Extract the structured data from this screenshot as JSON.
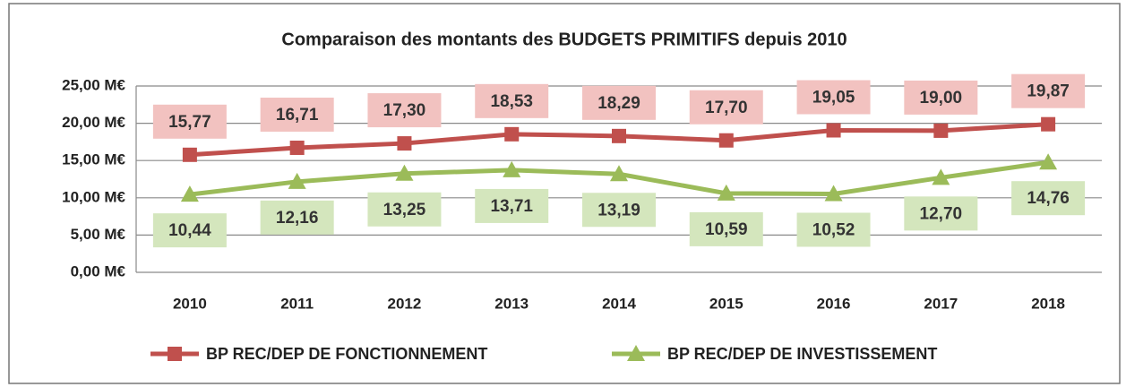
{
  "chart_data": {
    "type": "line",
    "title": "Comparaison des montants des BUDGETS PRIMITIFS depuis 2010",
    "categories": [
      "2010",
      "2011",
      "2012",
      "2013",
      "2014",
      "2015",
      "2016",
      "2017",
      "2018"
    ],
    "series": [
      {
        "name": "BP REC/DEP DE FONCTIONNEMENT",
        "color": "#c0504d",
        "label_color": "#f2c2c0",
        "marker": "square",
        "values": [
          15.77,
          16.71,
          17.3,
          18.53,
          18.29,
          17.7,
          19.05,
          19.0,
          19.87
        ],
        "value_labels": [
          "15,77",
          "16,71",
          "17,30",
          "18,53",
          "18,29",
          "17,70",
          "19,05",
          "19,00",
          "19,87"
        ]
      },
      {
        "name": "BP REC/DEP DE INVESTISSEMENT",
        "color": "#9bbb59",
        "label_color": "#d4e6bd",
        "marker": "triangle",
        "values": [
          10.44,
          12.16,
          13.25,
          13.71,
          13.19,
          10.59,
          10.52,
          12.7,
          14.76
        ],
        "value_labels": [
          "10,44",
          "12,16",
          "13,25",
          "13,71",
          "13,19",
          "10,59",
          "10,52",
          "12,70",
          "14,76"
        ]
      }
    ],
    "ylim": [
      0,
      25
    ],
    "yticks": [
      {
        "value": 0,
        "label": "0,00 M€"
      },
      {
        "value": 5,
        "label": "5,00 M€"
      },
      {
        "value": 10,
        "label": "10,00 M€"
      },
      {
        "value": 15,
        "label": "15,00 M€"
      },
      {
        "value": 20,
        "label": "20,00 M€"
      },
      {
        "value": 25,
        "label": "25,00 M€"
      }
    ],
    "grid": true,
    "legend": "bottom"
  }
}
